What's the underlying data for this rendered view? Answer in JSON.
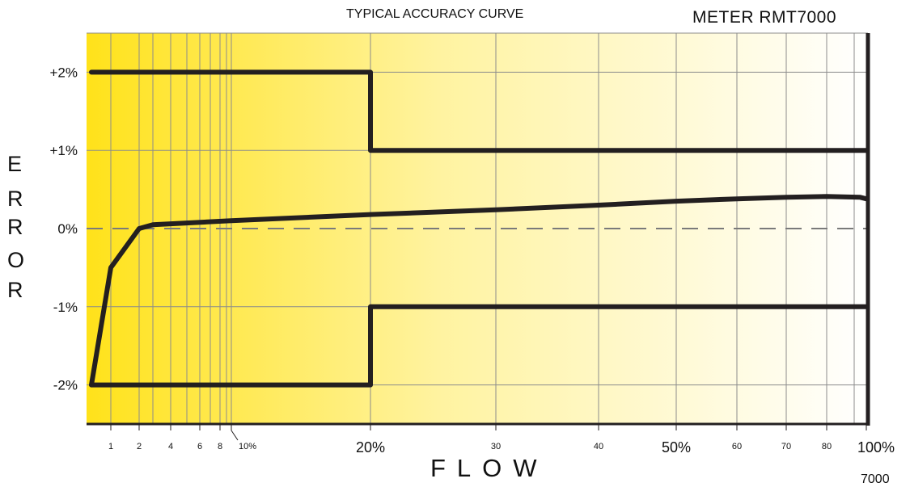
{
  "header": {
    "title": "TYPICAL ACCURACY CURVE",
    "meter": "METER RMT7000"
  },
  "axis_labels": {
    "y_letters": [
      "E",
      "R",
      "R",
      "O",
      "R"
    ],
    "x": "FLOW"
  },
  "footer_code": "7000",
  "colors": {
    "gradient_start": "#ffe21a",
    "gradient_end": "#ffffff",
    "curve": "#231f20",
    "grid": "#8c8c8c",
    "zero_line": "#7a7a7a"
  },
  "chart_data": {
    "type": "line",
    "title": "TYPICAL ACCURACY CURVE",
    "xlabel": "FLOW",
    "ylabel": "ERROR",
    "ylim": [
      -2.5,
      2.5
    ],
    "y_ticks": [
      {
        "value": 2,
        "label": "+2%"
      },
      {
        "value": 1,
        "label": "+1%"
      },
      {
        "value": 0,
        "label": "0%"
      },
      {
        "value": -1,
        "label": "-1%"
      },
      {
        "value": -2,
        "label": "-2%"
      }
    ],
    "x_ticks": [
      {
        "value": 1,
        "label": "1",
        "size": "small"
      },
      {
        "value": 2,
        "label": "2",
        "size": "small"
      },
      {
        "value": 4,
        "label": "4",
        "size": "small"
      },
      {
        "value": 6,
        "label": "6",
        "size": "small"
      },
      {
        "value": 8,
        "label": "8",
        "size": "small"
      },
      {
        "value": 10,
        "label": "10%",
        "size": "small"
      },
      {
        "value": 20,
        "label": "20%",
        "size": "big"
      },
      {
        "value": 30,
        "label": "30",
        "size": "small"
      },
      {
        "value": 40,
        "label": "40",
        "size": "small"
      },
      {
        "value": 50,
        "label": "50%",
        "size": "big"
      },
      {
        "value": 60,
        "label": "60",
        "size": "small"
      },
      {
        "value": 70,
        "label": "70",
        "size": "small"
      },
      {
        "value": 80,
        "label": "80",
        "size": "small"
      },
      {
        "value": 100,
        "label": "100%",
        "size": "big"
      }
    ],
    "grid": true,
    "series": [
      {
        "role": "upper-limit",
        "points": [
          [
            0.1,
            2
          ],
          [
            20,
            2
          ],
          [
            20,
            1
          ],
          [
            100,
            1
          ]
        ]
      },
      {
        "role": "lower-limit",
        "points": [
          [
            0.1,
            -2
          ],
          [
            20,
            -2
          ],
          [
            20,
            -1
          ],
          [
            100,
            -1
          ]
        ]
      },
      {
        "role": "accuracy-curve",
        "points": [
          [
            0.1,
            -2
          ],
          [
            1,
            -0.5
          ],
          [
            2,
            0.0
          ],
          [
            3,
            0.05
          ],
          [
            10,
            0.1
          ],
          [
            20,
            0.18
          ],
          [
            30,
            0.24
          ],
          [
            40,
            0.3
          ],
          [
            50,
            0.35
          ],
          [
            60,
            0.38
          ],
          [
            70,
            0.4
          ],
          [
            80,
            0.41
          ],
          [
            95,
            0.4
          ],
          [
            100,
            0.38
          ]
        ]
      }
    ]
  }
}
